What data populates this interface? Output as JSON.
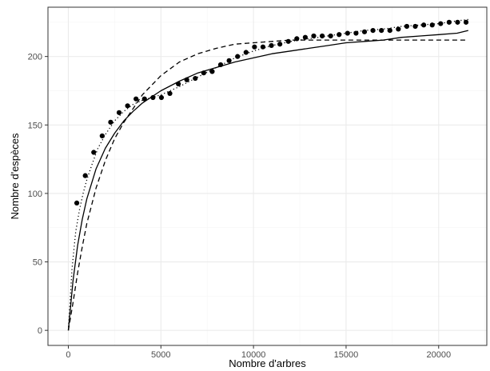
{
  "chart_data": {
    "type": "scatter",
    "xlabel": "Nombre d'arbres",
    "ylabel": "Nombre d'espèces",
    "xlim": [
      -1100,
      22600
    ],
    "ylim": [
      -11,
      236
    ],
    "x_ticks": [
      0,
      5000,
      10000,
      15000,
      20000
    ],
    "x_tick_labels": [
      "0",
      "5000",
      "10000",
      "15000",
      "20000"
    ],
    "y_ticks": [
      0,
      50,
      100,
      150,
      200
    ],
    "y_tick_labels": [
      "0",
      "50",
      "100",
      "150",
      "200"
    ],
    "grid": true,
    "legend": "none",
    "colors": {
      "background": "#ffffff",
      "panel_border": "#333333",
      "grid_major": "#ebebeb",
      "grid_minor": "#f5f5f5",
      "series": "#000000"
    },
    "series": [
      {
        "style": "points",
        "x": [
          457,
          914,
          1371,
          1828,
          2285,
          2742,
          3199,
          3656,
          4113,
          4570,
          5027,
          5484,
          5941,
          6398,
          6855,
          7312,
          7769,
          8226,
          8683,
          9140,
          9597,
          10054,
          10511,
          10968,
          11425,
          11882,
          12339,
          12796,
          13253,
          13710,
          14167,
          14624,
          15081,
          15538,
          15995,
          16452,
          16909,
          17366,
          17823,
          18280,
          18737,
          19194,
          19651,
          20108,
          20565,
          21022,
          21479
        ],
        "y": [
          93,
          113,
          130,
          142,
          152,
          159,
          164,
          169,
          169,
          170,
          170,
          173,
          180,
          183,
          184,
          188,
          189,
          194,
          197,
          200,
          203,
          207,
          207,
          208,
          209,
          211,
          213,
          214,
          215,
          215,
          215,
          216,
          217,
          217,
          218,
          219,
          219,
          219,
          220,
          222,
          222,
          223,
          223,
          224,
          225,
          225,
          225
        ]
      },
      {
        "style": "solid",
        "x": [
          0,
          250,
          500,
          750,
          1000,
          1500,
          2000,
          2500,
          3000,
          3500,
          4000,
          5000,
          6000,
          7000,
          8000,
          9000,
          10000,
          11000,
          12000,
          13000,
          14000,
          15000,
          16000,
          17000,
          18000,
          19000,
          20000,
          21000,
          21600
        ],
        "y": [
          0,
          36,
          62,
          81,
          96,
          118,
          133,
          144,
          153,
          160,
          166,
          175,
          182,
          188,
          192,
          196,
          199,
          202,
          204,
          206,
          208,
          210,
          211,
          212,
          214,
          215,
          216,
          217,
          219
        ]
      },
      {
        "style": "dashed",
        "x": [
          0,
          250,
          500,
          750,
          1000,
          1500,
          2000,
          2500,
          3000,
          3500,
          4000,
          5000,
          6000,
          7000,
          8000,
          9000,
          10000,
          11000,
          12000,
          13000,
          14000,
          15000,
          16000,
          17000,
          18000,
          19000,
          20000,
          21000,
          21600
        ],
        "y": [
          0,
          20,
          42,
          61,
          78,
          104,
          124,
          140,
          152,
          162,
          172,
          186,
          196,
          202,
          206,
          209,
          210,
          211,
          212,
          212,
          212,
          212,
          212,
          212,
          212,
          212,
          212,
          212,
          212
        ]
      },
      {
        "style": "dotted",
        "x": [
          0,
          200,
          400,
          600,
          800,
          1000,
          1300,
          1600,
          2000,
          2500,
          3000,
          3500,
          4000,
          5000,
          6000,
          7000,
          8000,
          9000,
          10000,
          11000,
          12000,
          13000,
          14000,
          15000,
          16000,
          17000,
          18000,
          19000,
          20000,
          21000,
          21600
        ],
        "y": [
          0,
          45,
          72,
          88,
          100,
          110,
          122,
          133,
          143,
          153,
          160,
          165,
          168,
          172,
          178,
          185,
          192,
          199,
          204,
          208,
          211,
          213,
          215,
          217,
          219,
          220,
          222,
          223,
          224,
          226,
          227
        ]
      }
    ]
  }
}
